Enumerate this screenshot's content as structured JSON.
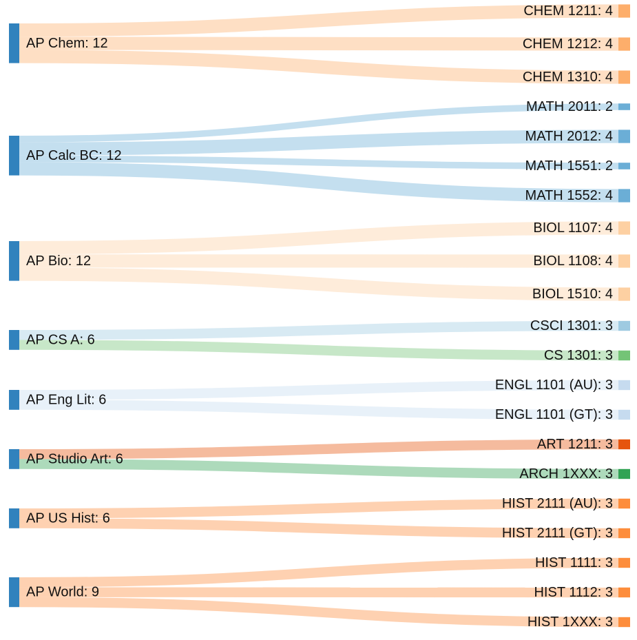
{
  "chart_data": {
    "type": "sankey",
    "sources": [
      {
        "id": "apchem",
        "label": "AP Chem: 12"
      },
      {
        "id": "apcalc",
        "label": "AP Calc BC: 12"
      },
      {
        "id": "apbio",
        "label": "AP Bio: 12"
      },
      {
        "id": "apcsa",
        "label": "AP CS A: 6"
      },
      {
        "id": "apenglit",
        "label": "AP Eng Lit: 6"
      },
      {
        "id": "apstudioart",
        "label": "AP Studio Art: 6"
      },
      {
        "id": "apushist",
        "label": "AP US Hist: 6"
      },
      {
        "id": "apworld",
        "label": "AP World: 9"
      }
    ],
    "targets": [
      {
        "id": "chem1211",
        "label": "CHEM 1211: 4",
        "color": "#fdae6b"
      },
      {
        "id": "chem1212",
        "label": "CHEM 1212: 4",
        "color": "#fdae6b"
      },
      {
        "id": "chem1310",
        "label": "CHEM 1310: 4",
        "color": "#fdae6b"
      },
      {
        "id": "math2011",
        "label": "MATH 2011: 2",
        "color": "#6baed6"
      },
      {
        "id": "math2012",
        "label": "MATH 2012: 4",
        "color": "#6baed6"
      },
      {
        "id": "math1551",
        "label": "MATH 1551: 2",
        "color": "#6baed6"
      },
      {
        "id": "math1552",
        "label": "MATH 1552: 4",
        "color": "#6baed6"
      },
      {
        "id": "biol1107",
        "label": "BIOL 1107: 4",
        "color": "#fdd0a2"
      },
      {
        "id": "biol1108",
        "label": "BIOL 1108: 4",
        "color": "#fdd0a2"
      },
      {
        "id": "biol1510",
        "label": "BIOL 1510: 4",
        "color": "#fdd0a2"
      },
      {
        "id": "csci1301",
        "label": "CSCI 1301: 3",
        "color": "#9ecae1"
      },
      {
        "id": "cs1301",
        "label": "CS 1301: 3",
        "color": "#74c476"
      },
      {
        "id": "engl1101au",
        "label": "ENGL 1101 (AU): 3",
        "color": "#c6dbef"
      },
      {
        "id": "engl1101gt",
        "label": "ENGL 1101 (GT): 3",
        "color": "#c6dbef"
      },
      {
        "id": "art1211",
        "label": "ART 1211: 3",
        "color": "#e6550d"
      },
      {
        "id": "arch1xxx",
        "label": "ARCH 1XXX: 3",
        "color": "#31a354"
      },
      {
        "id": "hist2111au",
        "label": "HIST 2111 (AU): 3",
        "color": "#fd8d3c"
      },
      {
        "id": "hist2111gt",
        "label": "HIST 2111 (GT): 3",
        "color": "#fd8d3c"
      },
      {
        "id": "hist1111",
        "label": "HIST 1111: 3",
        "color": "#fd8d3c"
      },
      {
        "id": "hist1112",
        "label": "HIST 1112: 3",
        "color": "#fd8d3c"
      },
      {
        "id": "hist1xxx",
        "label": "HIST 1XXX: 3",
        "color": "#fd8d3c"
      }
    ],
    "links": [
      {
        "source": "apchem",
        "target": "chem1211",
        "value": 4
      },
      {
        "source": "apchem",
        "target": "chem1212",
        "value": 4
      },
      {
        "source": "apchem",
        "target": "chem1310",
        "value": 4
      },
      {
        "source": "apcalc",
        "target": "math2011",
        "value": 2
      },
      {
        "source": "apcalc",
        "target": "math2012",
        "value": 4
      },
      {
        "source": "apcalc",
        "target": "math1551",
        "value": 2
      },
      {
        "source": "apcalc",
        "target": "math1552",
        "value": 4
      },
      {
        "source": "apbio",
        "target": "biol1107",
        "value": 4
      },
      {
        "source": "apbio",
        "target": "biol1108",
        "value": 4
      },
      {
        "source": "apbio",
        "target": "biol1510",
        "value": 4
      },
      {
        "source": "apcsa",
        "target": "csci1301",
        "value": 3
      },
      {
        "source": "apcsa",
        "target": "cs1301",
        "value": 3
      },
      {
        "source": "apenglit",
        "target": "engl1101au",
        "value": 3
      },
      {
        "source": "apenglit",
        "target": "engl1101gt",
        "value": 3
      },
      {
        "source": "apstudioart",
        "target": "art1211",
        "value": 3
      },
      {
        "source": "apstudioart",
        "target": "arch1xxx",
        "value": 3
      },
      {
        "source": "apushist",
        "target": "hist2111au",
        "value": 3
      },
      {
        "source": "apushist",
        "target": "hist2111gt",
        "value": 3
      },
      {
        "source": "apworld",
        "target": "hist1111",
        "value": 3
      },
      {
        "source": "apworld",
        "target": "hist1112",
        "value": 3
      },
      {
        "source": "apworld",
        "target": "hist1xxx",
        "value": 3
      }
    ],
    "source_node_color": "#3182bd"
  }
}
